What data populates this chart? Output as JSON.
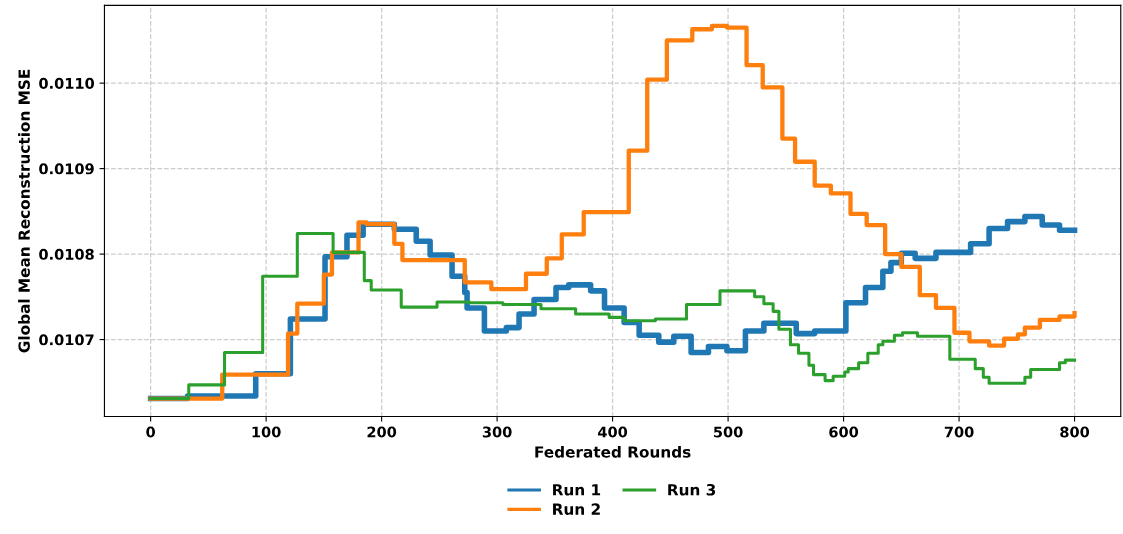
{
  "chart_data": {
    "type": "step",
    "xlabel": "Federated Rounds",
    "ylabel": "Global Mean Reconstruction MSE",
    "xlim": [
      -40,
      840
    ],
    "ylim": [
      0.01061,
      0.011091
    ],
    "xticks": [
      0,
      100,
      200,
      300,
      400,
      500,
      600,
      700,
      800
    ],
    "yticks": [
      0.0107,
      0.0108,
      0.0109,
      {
        "value": 0.011,
        "label": "0.0110"
      }
    ],
    "grid": true,
    "legend": "bottom",
    "line_style": "solid",
    "series": [
      {
        "name": "Run 1",
        "color": "#1f77b4",
        "x": [
          0,
          32,
          91,
          121,
          151,
          170,
          184,
          211,
          230,
          242,
          261,
          272,
          274,
          289,
          308,
          319,
          332,
          351,
          362,
          381,
          393,
          410,
          423,
          440,
          453,
          468,
          483,
          499,
          515,
          531,
          559,
          575,
          602,
          619,
          634,
          641,
          650,
          662,
          680,
          710,
          726,
          742,
          757,
          772,
          787,
          800
        ],
        "values": [
          0.010631,
          0.010634,
          0.01066,
          0.010724,
          0.010797,
          0.010822,
          0.010835,
          0.010829,
          0.010815,
          0.010799,
          0.010774,
          0.010755,
          0.010737,
          0.01071,
          0.010714,
          0.01073,
          0.010747,
          0.010761,
          0.010764,
          0.010757,
          0.010737,
          0.01072,
          0.010705,
          0.010697,
          0.010704,
          0.010685,
          0.010692,
          0.010687,
          0.01071,
          0.010719,
          0.010707,
          0.01071,
          0.010743,
          0.010761,
          0.01078,
          0.01079,
          0.010801,
          0.010795,
          0.010802,
          0.010812,
          0.01083,
          0.010838,
          0.010844,
          0.010834,
          0.010828,
          0.010828
        ]
      },
      {
        "name": "Run 2",
        "color": "#ff7f0e",
        "x": [
          0,
          62,
          119,
          127,
          150,
          157,
          180,
          187,
          211,
          218,
          272,
          295,
          325,
          343,
          356,
          375,
          414,
          430,
          447,
          469,
          486,
          499,
          516,
          530,
          547,
          558,
          575,
          589,
          606,
          620,
          636,
          650,
          666,
          680,
          696,
          709,
          726,
          739,
          751,
          757,
          770,
          787,
          800
        ],
        "values": [
          0.010631,
          0.010659,
          0.010707,
          0.010742,
          0.010776,
          0.010802,
          0.010837,
          0.010835,
          0.010812,
          0.010793,
          0.010767,
          0.010759,
          0.010777,
          0.010795,
          0.010823,
          0.010849,
          0.010921,
          0.011004,
          0.01105,
          0.011063,
          0.011067,
          0.011065,
          0.011021,
          0.010995,
          0.010935,
          0.010908,
          0.01088,
          0.010871,
          0.010847,
          0.010834,
          0.0108,
          0.010785,
          0.010752,
          0.010737,
          0.010708,
          0.010698,
          0.010693,
          0.010701,
          0.010706,
          0.010714,
          0.010723,
          0.010727,
          0.010731
        ]
      },
      {
        "name": "Run 3",
        "color": "#2ca02c",
        "x": [
          0,
          33,
          64,
          97,
          127,
          158,
          185,
          191,
          217,
          248,
          276,
          305,
          338,
          368,
          397,
          410,
          437,
          464,
          493,
          523,
          531,
          539,
          544,
          554,
          561,
          570,
          574,
          584,
          591,
          601,
          604,
          613,
          621,
          630,
          634,
          644,
          651,
          664,
          692,
          714,
          721,
          726,
          757,
          762,
          787,
          792,
          800
        ],
        "values": [
          0.010631,
          0.010647,
          0.010685,
          0.010774,
          0.010824,
          0.010802,
          0.010769,
          0.010758,
          0.010738,
          0.010744,
          0.010743,
          0.010741,
          0.010736,
          0.01073,
          0.010726,
          0.010722,
          0.010724,
          0.010741,
          0.010757,
          0.01075,
          0.010742,
          0.010733,
          0.010712,
          0.010694,
          0.010684,
          0.01067,
          0.010659,
          0.010652,
          0.010657,
          0.010662,
          0.010666,
          0.010673,
          0.010684,
          0.010694,
          0.010698,
          0.010705,
          0.010708,
          0.010704,
          0.010677,
          0.010666,
          0.010656,
          0.010649,
          0.010656,
          0.010665,
          0.010673,
          0.010676,
          0.010676
        ]
      }
    ]
  }
}
